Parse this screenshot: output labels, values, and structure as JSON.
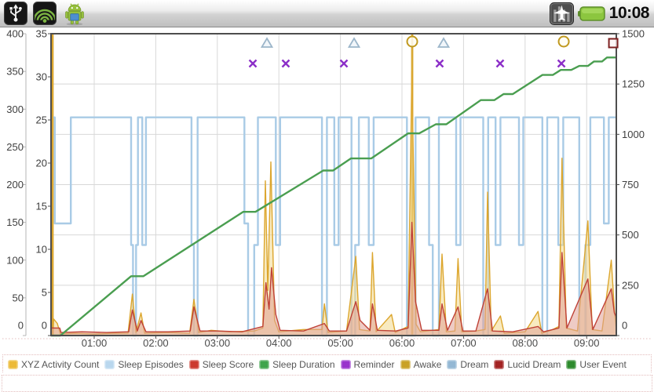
{
  "statusbar": {
    "time": "10:08",
    "icons_left": [
      "usb-icon",
      "security-signal-icon",
      "android-robot-icon"
    ],
    "icons_right": [
      "airplane-mode-icon",
      "battery-icon"
    ]
  },
  "legend": {
    "items": [
      {
        "label": "XYZ Activity Count",
        "color": "#ecba37"
      },
      {
        "label": "Sleep Episodes",
        "color": "#b9d7ee"
      },
      {
        "label": "Sleep Score",
        "color": "#cc3a2f"
      },
      {
        "label": "Sleep Duration",
        "color": "#3fa54c"
      },
      {
        "label": "Reminder",
        "color": "#9933cc"
      },
      {
        "label": "Awake",
        "color": "#c9a227"
      },
      {
        "label": "Dream",
        "color": "#94b8d4"
      },
      {
        "label": "Lucid Dream",
        "color": "#a32424"
      },
      {
        "label": "User Event",
        "color": "#2e8b2e"
      }
    ]
  },
  "chart_data": {
    "type": "line",
    "title": "",
    "grid": true,
    "legend_position": "bottom",
    "x_domain_hours": [
      0.2985,
      9.482
    ],
    "x_ticks": [
      "01:00",
      "02:00",
      "03:00",
      "04:00",
      "05:00",
      "06:00",
      "07:00",
      "08:00",
      "09:00"
    ],
    "axes": {
      "left_outer": {
        "range": [
          0,
          400
        ],
        "ticks": [
          0,
          50,
          100,
          150,
          200,
          250,
          300,
          350,
          400
        ]
      },
      "left_inner": {
        "range": [
          0,
          35
        ],
        "ticks": [
          0,
          5,
          10,
          15,
          20,
          25,
          30,
          35
        ]
      },
      "right": {
        "range": [
          0,
          1500
        ],
        "ticks": [
          0,
          250,
          500,
          750,
          1000,
          1250,
          1500
        ]
      }
    },
    "series": {
      "activity": {
        "name": "XYZ Activity Count",
        "axis": "left_outer",
        "color": "#dca62e",
        "fill": "#f3d98c",
        "points": [
          [
            0.3,
            0
          ],
          [
            0.318,
            0
          ],
          [
            0.32,
            400
          ],
          [
            0.327,
            400
          ],
          [
            0.33,
            0
          ],
          [
            0.34,
            22
          ],
          [
            0.4,
            16
          ],
          [
            0.45,
            2
          ],
          [
            0.7,
            3
          ],
          [
            1.0,
            2
          ],
          [
            1.3,
            3
          ],
          [
            1.55,
            3
          ],
          [
            1.62,
            55
          ],
          [
            1.68,
            4
          ],
          [
            1.76,
            30
          ],
          [
            1.82,
            3
          ],
          [
            2.2,
            4
          ],
          [
            2.55,
            3
          ],
          [
            2.62,
            48
          ],
          [
            2.7,
            4
          ],
          [
            2.9,
            7
          ],
          [
            3.2,
            5
          ],
          [
            3.6,
            6
          ],
          [
            3.74,
            10
          ],
          [
            3.78,
            205
          ],
          [
            3.82,
            60
          ],
          [
            3.87,
            230
          ],
          [
            3.93,
            20
          ],
          [
            4.0,
            5
          ],
          [
            4.4,
            8
          ],
          [
            4.7,
            8
          ],
          [
            4.74,
            42
          ],
          [
            4.8,
            4
          ],
          [
            5.1,
            6
          ],
          [
            5.25,
            105
          ],
          [
            5.31,
            8
          ],
          [
            5.48,
            6
          ],
          [
            5.52,
            110
          ],
          [
            5.58,
            5
          ],
          [
            5.83,
            28
          ],
          [
            5.89,
            4
          ],
          [
            6.1,
            12
          ],
          [
            6.16,
            350
          ],
          [
            6.23,
            15
          ],
          [
            6.3,
            5
          ],
          [
            6.6,
            8
          ],
          [
            6.65,
            108
          ],
          [
            6.72,
            5
          ],
          [
            6.86,
            6
          ],
          [
            6.91,
            102
          ],
          [
            6.97,
            5
          ],
          [
            7.2,
            6
          ],
          [
            7.35,
            8
          ],
          [
            7.39,
            190
          ],
          [
            7.45,
            6
          ],
          [
            7.6,
            26
          ],
          [
            7.66,
            3
          ],
          [
            8.0,
            5
          ],
          [
            8.21,
            32
          ],
          [
            8.27,
            3
          ],
          [
            8.45,
            8
          ],
          [
            8.55,
            12
          ],
          [
            8.6,
            235
          ],
          [
            8.67,
            10
          ],
          [
            8.85,
            6
          ],
          [
            9.02,
            152
          ],
          [
            9.09,
            8
          ],
          [
            9.25,
            6
          ],
          [
            9.4,
            100
          ],
          [
            9.45,
            35
          ],
          [
            9.48,
            10
          ]
        ]
      },
      "score": {
        "name": "Sleep Score",
        "axis": "left_outer",
        "color": "#bf4136",
        "fill": "#e0a196",
        "points": [
          [
            0.3,
            10
          ],
          [
            0.44,
            10
          ],
          [
            0.46,
            4
          ],
          [
            0.8,
            5
          ],
          [
            1.2,
            4
          ],
          [
            1.56,
            5
          ],
          [
            1.62,
            34
          ],
          [
            1.7,
            6
          ],
          [
            1.76,
            20
          ],
          [
            1.84,
            5
          ],
          [
            2.2,
            5
          ],
          [
            2.56,
            6
          ],
          [
            2.62,
            38
          ],
          [
            2.72,
            6
          ],
          [
            3.0,
            6
          ],
          [
            3.4,
            5
          ],
          [
            3.74,
            12
          ],
          [
            3.79,
            70
          ],
          [
            3.84,
            35
          ],
          [
            3.88,
            90
          ],
          [
            3.95,
            28
          ],
          [
            4.02,
            7
          ],
          [
            4.4,
            6
          ],
          [
            4.74,
            16
          ],
          [
            4.82,
            6
          ],
          [
            5.1,
            6
          ],
          [
            5.25,
            45
          ],
          [
            5.32,
            20
          ],
          [
            5.48,
            7
          ],
          [
            5.52,
            42
          ],
          [
            5.6,
            7
          ],
          [
            5.9,
            6
          ],
          [
            6.1,
            10
          ],
          [
            6.16,
            150
          ],
          [
            6.22,
            45
          ],
          [
            6.32,
            7
          ],
          [
            6.6,
            7
          ],
          [
            6.65,
            42
          ],
          [
            6.74,
            7
          ],
          [
            6.91,
            38
          ],
          [
            6.99,
            6
          ],
          [
            7.2,
            6
          ],
          [
            7.39,
            62
          ],
          [
            7.47,
            6
          ],
          [
            7.8,
            5
          ],
          [
            8.21,
            12
          ],
          [
            8.3,
            5
          ],
          [
            8.55,
            10
          ],
          [
            8.6,
            110
          ],
          [
            8.68,
            10
          ],
          [
            9.02,
            75
          ],
          [
            9.1,
            8
          ],
          [
            9.4,
            62
          ],
          [
            9.45,
            30
          ],
          [
            9.48,
            25
          ]
        ]
      },
      "episodes": {
        "name": "Sleep Episodes",
        "axis": "left_inner",
        "color": "#a9cbe6",
        "step": true,
        "points": [
          [
            0.3,
            25.3
          ],
          [
            0.36,
            13
          ],
          [
            0.62,
            25.3
          ],
          [
            1.6,
            10.5
          ],
          [
            1.63,
            0
          ],
          [
            1.68,
            10.5
          ],
          [
            1.71,
            25.3
          ],
          [
            1.78,
            10.5
          ],
          [
            1.84,
            25.3
          ],
          [
            2.58,
            10.5
          ],
          [
            2.62,
            0
          ],
          [
            2.68,
            25.3
          ],
          [
            3.44,
            13
          ],
          [
            3.5,
            0
          ],
          [
            3.6,
            10.5
          ],
          [
            3.66,
            25.3
          ],
          [
            3.95,
            10.5
          ],
          [
            4.02,
            25.3
          ],
          [
            4.7,
            0
          ],
          [
            4.78,
            25.3
          ],
          [
            4.9,
            10.5
          ],
          [
            4.97,
            25.3
          ],
          [
            5.18,
            0
          ],
          [
            5.24,
            10.5
          ],
          [
            5.3,
            25.3
          ],
          [
            5.46,
            10.5
          ],
          [
            5.54,
            25.3
          ],
          [
            6.08,
            0
          ],
          [
            6.22,
            25.3
          ],
          [
            6.44,
            10.5
          ],
          [
            6.5,
            0
          ],
          [
            6.6,
            25.3
          ],
          [
            6.88,
            10.5
          ],
          [
            6.95,
            25.3
          ],
          [
            7.32,
            0
          ],
          [
            7.4,
            25.3
          ],
          [
            7.52,
            10.5
          ],
          [
            7.6,
            25.3
          ],
          [
            7.9,
            10.5
          ],
          [
            7.97,
            25.3
          ],
          [
            8.28,
            0
          ],
          [
            8.36,
            25.3
          ],
          [
            8.54,
            10.5
          ],
          [
            8.62,
            25.3
          ],
          [
            8.88,
            0
          ],
          [
            8.98,
            10.5
          ],
          [
            9.06,
            25.3
          ],
          [
            9.28,
            13
          ],
          [
            9.36,
            25.3
          ],
          [
            9.48,
            25.3
          ]
        ]
      },
      "duration": {
        "name": "Sleep Duration",
        "axis": "right",
        "color": "#4a9e50",
        "points": [
          [
            0.3,
            0
          ],
          [
            0.45,
            0
          ],
          [
            1.6,
            295
          ],
          [
            1.8,
            295
          ],
          [
            3.42,
            615
          ],
          [
            3.62,
            615
          ],
          [
            4.72,
            820
          ],
          [
            4.88,
            820
          ],
          [
            5.17,
            880
          ],
          [
            5.5,
            880
          ],
          [
            6.1,
            1005
          ],
          [
            6.28,
            1005
          ],
          [
            6.55,
            1050
          ],
          [
            6.72,
            1050
          ],
          [
            7.28,
            1170
          ],
          [
            7.5,
            1170
          ],
          [
            7.65,
            1200
          ],
          [
            7.8,
            1200
          ],
          [
            8.28,
            1295
          ],
          [
            8.45,
            1295
          ],
          [
            8.58,
            1320
          ],
          [
            8.75,
            1320
          ],
          [
            8.88,
            1340
          ],
          [
            9.02,
            1340
          ],
          [
            9.12,
            1362
          ],
          [
            9.25,
            1362
          ],
          [
            9.33,
            1382
          ],
          [
            9.48,
            1382
          ]
        ]
      }
    },
    "event_lines": {
      "name": "Awake",
      "color": "#d9a933",
      "hours": [
        0.3235,
        6.166
      ]
    },
    "markers": {
      "reminder": {
        "shape": "x",
        "color": "#8c2fc8",
        "hours": [
          3.577,
          4.112,
          5.056,
          6.612,
          7.594,
          8.59
        ]
      },
      "dream": {
        "shape": "triangle",
        "color": "#9cb6ca",
        "hours": [
          3.806,
          5.222,
          6.676
        ]
      },
      "awake": {
        "shape": "circle",
        "color": "#c0991f",
        "hours": [
          6.166,
          8.628
        ]
      },
      "lucid_dream": {
        "shape": "square",
        "color": "#7e2222",
        "hours": [
          9.432
        ]
      }
    }
  }
}
